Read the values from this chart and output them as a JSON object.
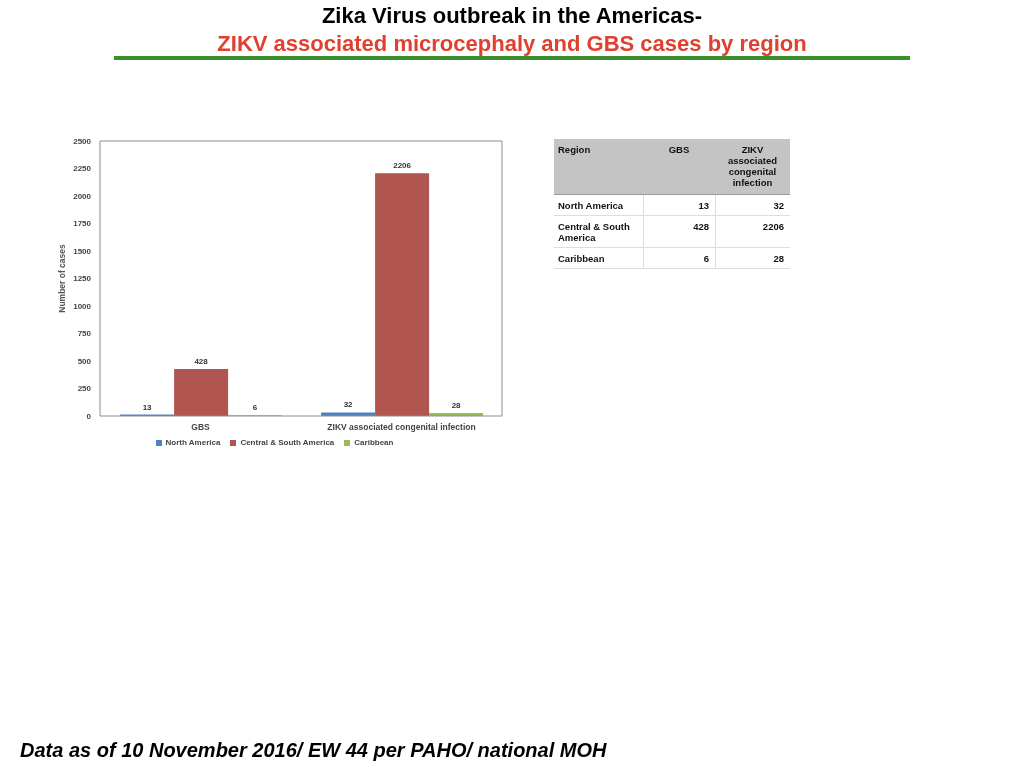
{
  "chart_data": [
    {
      "type": "bar",
      "title": "Zika Virus outbreak in the Americas-",
      "subtitle": "ZIKV associated microcephaly and GBS cases by region",
      "ylabel": "Number of cases",
      "categories": [
        "GBS",
        "ZIKV associated congenital infection"
      ],
      "series": [
        {
          "name": "North America",
          "color": "#4f81bd",
          "values": [
            13,
            32
          ]
        },
        {
          "name": "Central & South America",
          "color": "#b0554f",
          "values": [
            428,
            2206
          ]
        },
        {
          "name": "Caribbean",
          "color": "#9bbb59",
          "values": [
            6,
            28
          ]
        }
      ],
      "ylim": [
        0,
        2500
      ],
      "yticks": [
        0,
        250,
        500,
        750,
        1000,
        1250,
        1500,
        1750,
        2000,
        2250,
        2500
      ],
      "grid": false,
      "legend": "bottom",
      "data_labels": true,
      "annotations": [
        "Data as of 10 November 2016/ EW 44 per PAHO/ national MOH"
      ]
    },
    {
      "type": "heatmap",
      "ylabel": "Region",
      "categories": [
        "GBS",
        "ZIKV associated congenital infection"
      ],
      "y_categories": [
        "North America",
        "Central & South America",
        "Caribbean"
      ],
      "cells": [
        [
          13,
          32
        ],
        [
          428,
          2206
        ],
        [
          6,
          28
        ]
      ],
      "data_labels": true
    }
  ]
}
